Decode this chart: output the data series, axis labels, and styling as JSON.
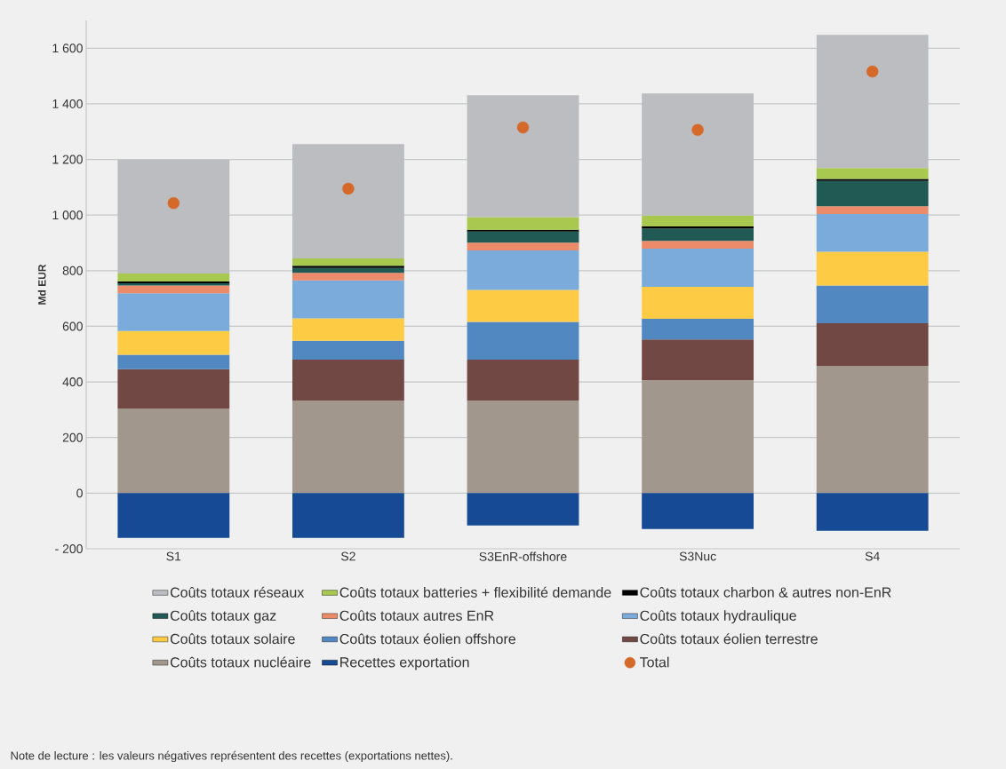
{
  "chart_data": {
    "type": "bar",
    "stacked": true,
    "ylabel": "Md EUR",
    "categories": [
      "S1",
      "S2",
      "S3EnR-offshore",
      "S3Nuc",
      "S4"
    ],
    "ylim": [
      -200,
      1700
    ],
    "yticks": [
      {
        "value": -200,
        "label": "- 200"
      },
      0,
      200,
      400,
      600,
      800,
      {
        "value": 1000,
        "label": "1 000"
      },
      {
        "value": 1200,
        "label": "1 200"
      },
      {
        "value": 1400,
        "label": "1 400"
      },
      {
        "value": 1600,
        "label": "1 600"
      }
    ],
    "grid": "y",
    "legend": "bottom",
    "series": [
      {
        "name": "Coûts totaux nucléaire",
        "color": "#a1978d",
        "values": [
          304,
          333,
          333,
          407,
          457
        ]
      },
      {
        "name": "Coûts totaux éolien terrestre",
        "color": "#724845",
        "values": [
          142,
          147,
          147,
          146,
          154
        ]
      },
      {
        "name": "Coûts totaux éolien offshore",
        "color": "#5288c2",
        "values": [
          52,
          68,
          136,
          74,
          136
        ]
      },
      {
        "name": "Coûts totaux solaire",
        "color": "#fecb45",
        "values": [
          85,
          81,
          115,
          115,
          121
        ]
      },
      {
        "name": "Coûts totaux hydraulique",
        "color": "#7aabda",
        "values": [
          136,
          136,
          142,
          137,
          136
        ]
      },
      {
        "name": "Coûts totaux autres EnR",
        "color": "#ec8b69",
        "values": [
          28,
          27,
          28,
          28,
          28
        ]
      },
      {
        "name": "Coûts totaux gaz",
        "color": "#215a54",
        "values": [
          8,
          18,
          40,
          45,
          91
        ]
      },
      {
        "name": "Coûts totaux charbon & autres non-EnR",
        "color": "#000000",
        "values": [
          6,
          8,
          6,
          7,
          7
        ]
      },
      {
        "name": "Coûts totaux batteries + flexibilité demande",
        "color": "#a8c84f",
        "values": [
          29,
          26,
          46,
          39,
          39
        ]
      },
      {
        "name": "Coûts totaux réseaux",
        "color": "#bcbdc1",
        "values": [
          409,
          411,
          438,
          439,
          479
        ]
      },
      {
        "name": "Recettes exportation",
        "color": "#174a94",
        "values": [
          -161,
          -161,
          -116,
          -129,
          -135
        ]
      },
      {
        "name": "Total",
        "type": "scatter",
        "color": "#d5692a",
        "values": [
          1043,
          1095,
          1315,
          1306,
          1516
        ]
      }
    ],
    "annotations": [
      "Note de lecture : les valeurs négatives représentent des recettes (exportations nettes)."
    ]
  }
}
